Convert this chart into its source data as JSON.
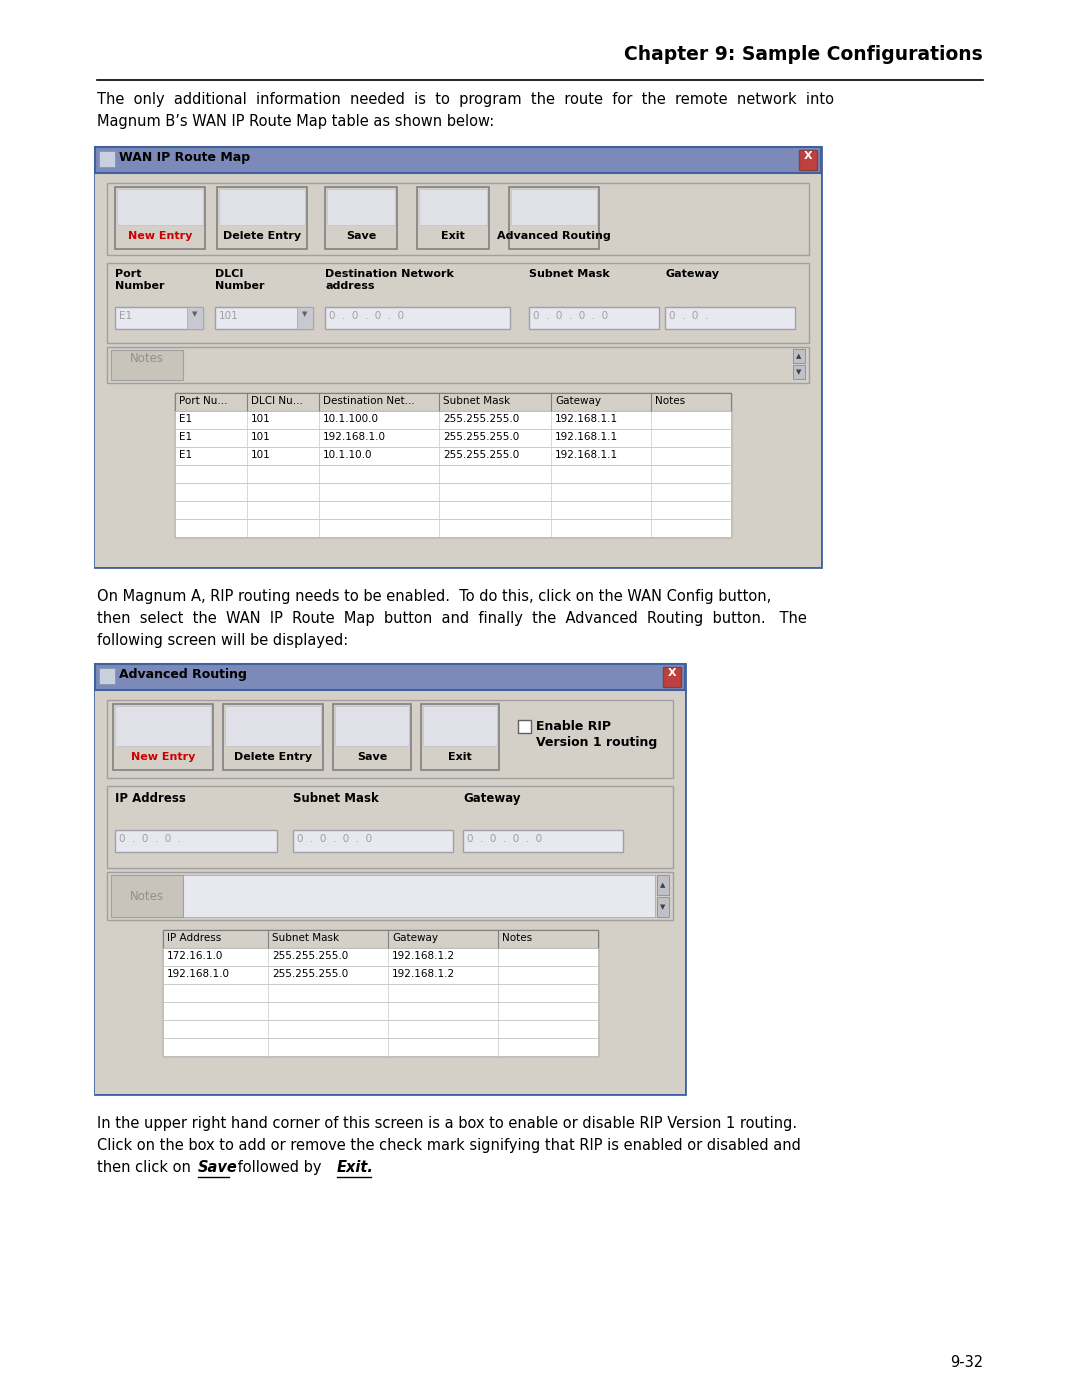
{
  "page_bg": "#ffffff",
  "chapter_title": "Chapter 9: Sample Configurations",
  "page_number": "9-32",
  "para1_line1": "The  only  additional  information  needed  is  to  program  the  route  for  the  remote  network  into",
  "para1_line2": "Magnum B’s WAN IP Route Map table as shown below:",
  "wan_title": "WAN IP Route Map",
  "wan_buttons": [
    "New Entry",
    "Delete Entry",
    "Save",
    "Exit",
    "Advanced Routing"
  ],
  "wan_table_headers": [
    "Port Nu...",
    "DLCI Nu...",
    "Destination Net...",
    "Subnet Mask",
    "Gateway",
    "Notes"
  ],
  "wan_table_data": [
    [
      "E1",
      "101",
      "10.1.100.0",
      "255.255.255.0",
      "192.168.1.1",
      ""
    ],
    [
      "E1",
      "101",
      "192.168.1.0",
      "255.255.255.0",
      "192.168.1.1",
      ""
    ],
    [
      "E1",
      "101",
      "10.1.10.0",
      "255.255.255.0",
      "192.168.1.1",
      ""
    ],
    [
      "",
      "",
      "",
      "",
      "",
      ""
    ],
    [
      "",
      "",
      "",
      "",
      "",
      ""
    ],
    [
      "",
      "",
      "",
      "",
      "",
      ""
    ],
    [
      "",
      "",
      "",
      "",
      "",
      ""
    ]
  ],
  "para2_line1": "On Magnum A, RIP routing needs to be enabled.  To do this, click on the WAN Config button,",
  "para2_line2": "then  select  the  WAN  IP  Route  Map  button  and  finally  the  Advanced  Routing  button.   The",
  "para2_line3": "following screen will be displayed:",
  "adv_title": "Advanced Routing",
  "adv_buttons": [
    "New Entry",
    "Delete Entry",
    "Save",
    "Exit"
  ],
  "adv_rip_label1": "Enable RIP",
  "adv_rip_label2": "Version 1 routing",
  "adv_table_headers": [
    "IP Address",
    "Subnet Mask",
    "Gateway",
    "Notes"
  ],
  "adv_table_data": [
    [
      "172.16.1.0",
      "255.255.255.0",
      "192.168.1.2",
      ""
    ],
    [
      "192.168.1.0",
      "255.255.255.0",
      "192.168.1.2",
      ""
    ],
    [
      "",
      "",
      "",
      ""
    ],
    [
      "",
      "",
      "",
      ""
    ],
    [
      "",
      "",
      "",
      ""
    ],
    [
      "",
      "",
      "",
      ""
    ]
  ],
  "para3_line1": "In the upper right hand corner of this screen is a box to enable or disable RIP Version 1 routing.",
  "para3_line2": "Click on the box to add or remove the check mark signifying that RIP is enabled or disabled and",
  "para3_line3_pre": "then click on ",
  "para3_save": "Save",
  "para3_mid": " followed by ",
  "para3_exit": "Exit.",
  "dialog_bg": "#d4d0c8",
  "dialog_inner_bg": "#e8e8f0",
  "titlebar_bg": "#0000a0",
  "titlebar_fg": "#ffffff",
  "btn_bg": "#d4d0c8",
  "table_header_bg": "#d4d0c8",
  "table_row_bg": "#ffffff",
  "field_bg": "#ffffff",
  "field_fg": "#808080"
}
